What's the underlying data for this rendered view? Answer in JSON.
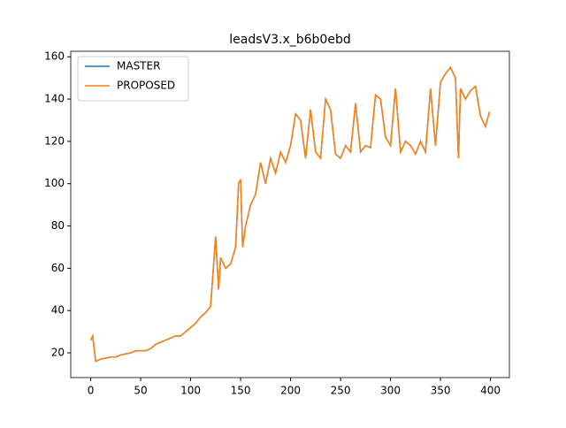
{
  "chart_data": {
    "type": "line",
    "title": "leadsV3.x_b6b0ebd",
    "x": [
      0,
      2,
      5,
      10,
      15,
      20,
      25,
      30,
      35,
      40,
      45,
      50,
      55,
      60,
      65,
      70,
      75,
      80,
      85,
      90,
      95,
      100,
      105,
      110,
      115,
      120,
      125,
      128,
      130,
      135,
      140,
      145,
      148,
      150,
      152,
      155,
      160,
      165,
      170,
      175,
      180,
      185,
      190,
      195,
      200,
      205,
      210,
      215,
      220,
      225,
      230,
      235,
      240,
      245,
      250,
      255,
      260,
      265,
      270,
      275,
      280,
      285,
      290,
      295,
      300,
      305,
      310,
      315,
      320,
      325,
      330,
      335,
      340,
      345,
      350,
      355,
      360,
      365,
      368,
      370,
      375,
      380,
      385,
      390,
      395,
      399
    ],
    "series": [
      {
        "name": "MASTER",
        "color": "#1f77b4",
        "values": [
          26,
          28,
          16,
          17,
          17.5,
          18,
          18,
          19,
          19.5,
          20,
          21,
          21,
          21,
          22,
          24,
          25,
          26,
          27,
          28,
          28,
          30,
          32,
          34,
          37,
          39,
          42,
          75,
          50,
          65,
          60,
          62,
          70,
          100,
          102,
          70,
          80,
          90,
          95,
          110,
          100,
          112,
          105,
          115,
          110,
          118,
          133,
          130,
          112,
          135,
          115,
          112,
          140,
          135,
          114,
          112,
          118,
          115,
          138,
          115,
          118,
          117,
          142,
          140,
          122,
          118,
          145,
          115,
          120,
          118,
          114,
          120,
          115,
          145,
          118,
          148,
          152,
          155,
          150,
          112,
          145,
          140,
          144,
          146,
          132,
          127,
          134
        ]
      },
      {
        "name": "PROPOSED",
        "color": "#ff7f0e",
        "values": [
          26,
          28,
          16,
          17,
          17.5,
          18,
          18,
          19,
          19.5,
          20,
          21,
          21,
          21,
          22,
          24,
          25,
          26,
          27,
          28,
          28,
          30,
          32,
          34,
          37,
          39,
          42,
          75,
          50,
          65,
          60,
          62,
          70,
          100,
          102,
          70,
          80,
          90,
          95,
          110,
          100,
          112,
          105,
          115,
          110,
          118,
          133,
          130,
          112,
          135,
          115,
          112,
          140,
          135,
          114,
          112,
          118,
          115,
          138,
          115,
          118,
          117,
          142,
          140,
          122,
          118,
          145,
          115,
          120,
          118,
          114,
          120,
          115,
          145,
          118,
          148,
          152,
          155,
          150,
          112,
          145,
          140,
          144,
          146,
          132,
          127,
          134
        ]
      }
    ],
    "xlim": [
      -19.95,
      418.95
    ],
    "xticks": [
      0,
      50,
      100,
      150,
      200,
      250,
      300,
      350,
      400
    ],
    "ylim": [
      8.3,
      162.6
    ],
    "yticks": [
      20,
      40,
      60,
      80,
      100,
      120,
      140,
      160
    ],
    "grid": false,
    "legend": "upper left"
  }
}
